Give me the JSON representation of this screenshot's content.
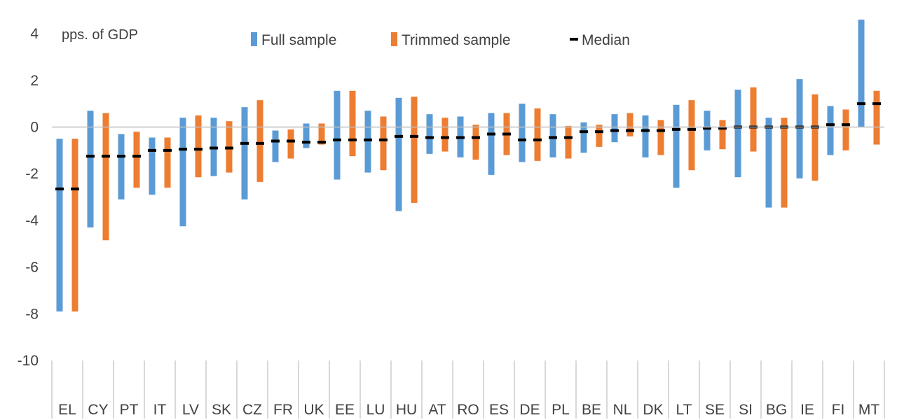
{
  "chart_data": {
    "type": "bar",
    "title": "",
    "unit_label": "pps. of GDP",
    "xlabel": "",
    "ylabel": "",
    "ylim": [
      -10,
      4.6
    ],
    "yticks": [
      4,
      2,
      0,
      -2,
      -4,
      -6,
      -8,
      -10
    ],
    "grid": false,
    "legend_position": "top",
    "colors": {
      "full": "#5B9BD5",
      "trimmed": "#ED7D31",
      "median": "#000000",
      "axis": "#BFBFBF",
      "text": "#404040"
    },
    "legend": [
      {
        "key": "full",
        "name": "Full sample",
        "symbol": "bar"
      },
      {
        "key": "trimmed",
        "name": "Trimmed sample",
        "symbol": "bar"
      },
      {
        "key": "median",
        "name": "Median",
        "symbol": "dash"
      }
    ],
    "categories": [
      "EL",
      "CY",
      "PT",
      "IT",
      "LV",
      "SK",
      "CZ",
      "FR",
      "UK",
      "EE",
      "LU",
      "HU",
      "AT",
      "RO",
      "ES",
      "DE",
      "PL",
      "BE",
      "NL",
      "DK",
      "LT",
      "SE",
      "SI",
      "BG",
      "IE",
      "FI",
      "MT"
    ],
    "series": [
      {
        "key": "full",
        "name": "Full sample",
        "low": [
          -7.9,
          -4.3,
          -3.1,
          -2.9,
          -4.25,
          -2.1,
          -3.1,
          -1.5,
          -0.9,
          -2.25,
          -1.95,
          -3.6,
          -1.15,
          -1.3,
          -2.05,
          -1.5,
          -1.3,
          -1.1,
          -0.65,
          -1.3,
          -2.6,
          -1.0,
          -2.15,
          -3.45,
          -2.2,
          -1.2,
          0.0
        ],
        "high": [
          -0.5,
          0.7,
          -0.3,
          -0.45,
          0.4,
          0.4,
          0.85,
          -0.15,
          0.15,
          1.55,
          0.7,
          1.25,
          0.55,
          0.45,
          0.6,
          1.0,
          0.55,
          0.2,
          0.55,
          0.5,
          0.95,
          0.7,
          1.6,
          0.4,
          2.05,
          0.9,
          4.6
        ]
      },
      {
        "key": "trimmed",
        "name": "Trimmed sample",
        "low": [
          -7.9,
          -4.85,
          -2.6,
          -2.6,
          -2.15,
          -1.95,
          -2.35,
          -1.35,
          -0.75,
          -1.25,
          -1.85,
          -3.25,
          -1.05,
          -1.4,
          -1.2,
          -1.45,
          -1.35,
          -0.85,
          -0.4,
          -1.2,
          -1.85,
          -0.95,
          -1.05,
          -3.45,
          -2.3,
          -1.0,
          -0.75
        ],
        "high": [
          -0.5,
          0.6,
          -0.2,
          -0.45,
          0.5,
          0.25,
          1.15,
          -0.1,
          0.15,
          1.55,
          0.45,
          1.3,
          0.4,
          0.1,
          0.6,
          0.8,
          0.05,
          0.1,
          0.6,
          0.3,
          1.15,
          0.3,
          1.7,
          0.4,
          1.4,
          0.75,
          1.55
        ]
      },
      {
        "key": "median",
        "name": "Median",
        "values": [
          -2.65,
          -1.25,
          -1.25,
          -1.0,
          -0.95,
          -0.9,
          -0.7,
          -0.6,
          -0.65,
          -0.55,
          -0.55,
          -0.4,
          -0.45,
          -0.45,
          -0.3,
          -0.55,
          -0.45,
          -0.2,
          -0.15,
          -0.15,
          -0.1,
          -0.05,
          0.0,
          0.0,
          0.0,
          0.1,
          1.0
        ]
      }
    ]
  }
}
